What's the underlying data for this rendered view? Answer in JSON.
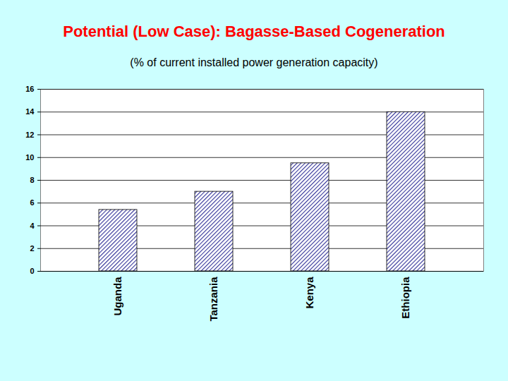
{
  "chart_data": {
    "type": "bar",
    "title": "Potential (Low Case): Bagasse-Based Cogeneration",
    "subtitle": "(% of current installed power generation capacity)",
    "categories": [
      "Uganda",
      "Tanzania",
      "Kenya",
      "Ethiopia"
    ],
    "values": [
      5.4,
      7.0,
      9.5,
      14.0
    ],
    "color": "#333399",
    "ylim": [
      0,
      16
    ],
    "yticks": [
      0,
      2,
      4,
      6,
      8,
      10,
      12,
      14,
      16
    ],
    "grid": true
  }
}
